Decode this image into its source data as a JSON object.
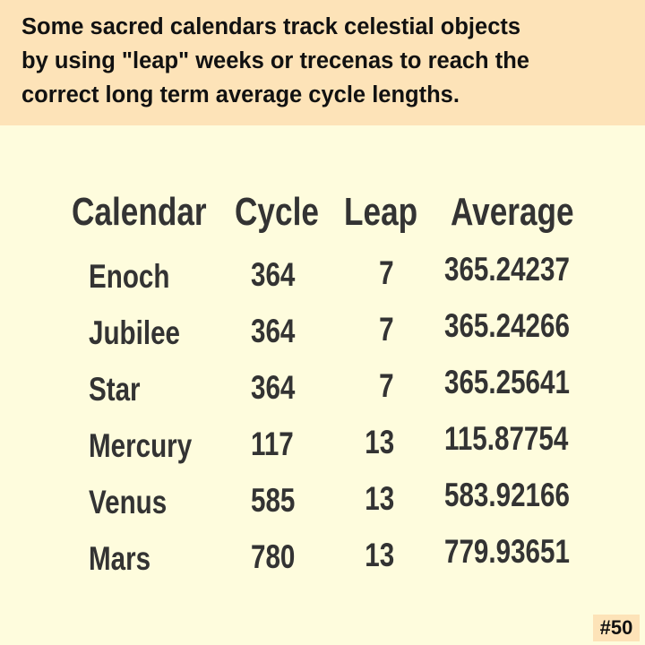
{
  "header": {
    "lines": [
      "Some sacred calendars track celestial objects",
      "by using \"leap\" weeks or trecenas to reach the",
      "correct long term average cycle lengths."
    ]
  },
  "table": {
    "columns": [
      "Calendar",
      "Cycle",
      "Leap",
      "Average"
    ],
    "rows": [
      [
        "Enoch",
        "364",
        "7",
        "365.24237"
      ],
      [
        "Jubilee",
        "364",
        "7",
        "365.24266"
      ],
      [
        "Star",
        "364",
        "7",
        "365.25641"
      ],
      [
        "Mercury",
        "117",
        "13",
        "115.87754"
      ],
      [
        "Venus",
        "585",
        "13",
        "583.92166"
      ],
      [
        "Mars",
        "780",
        "13",
        "779.93651"
      ]
    ]
  },
  "footer": {
    "badge": "#50"
  }
}
